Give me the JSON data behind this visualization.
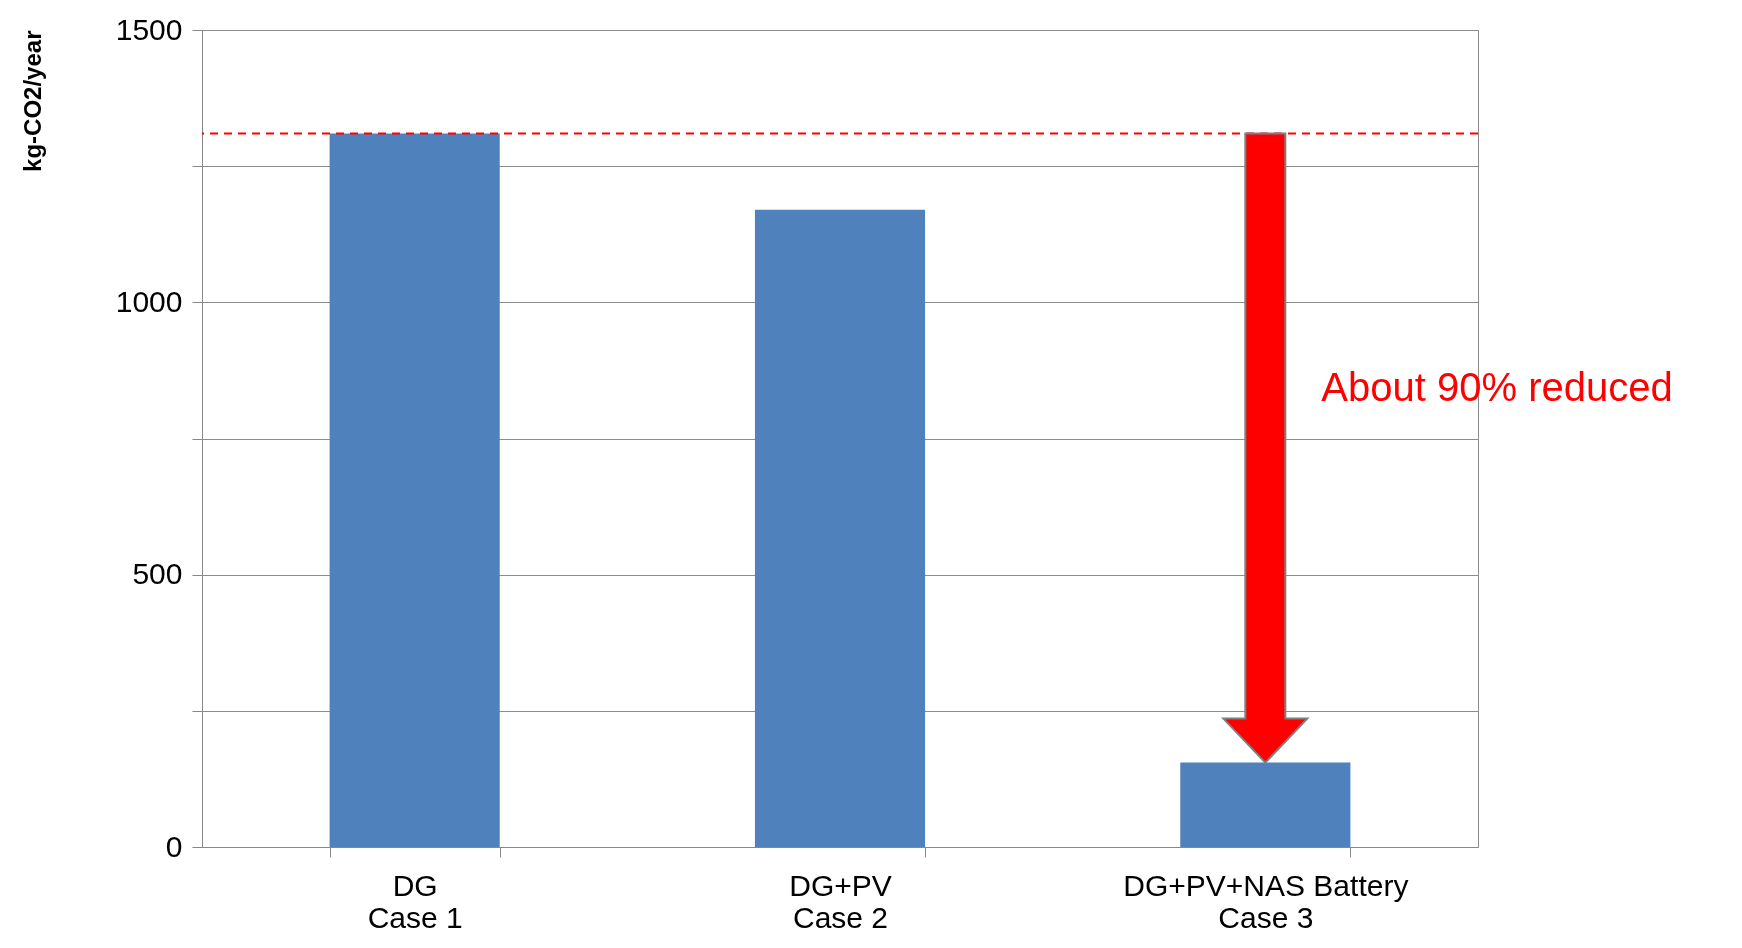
{
  "chart_data": {
    "type": "bar",
    "ylabel": "kg-CO2/year",
    "categories": [
      "DG\nCase 1",
      "DG+PV\nCase 2",
      "DG+PV+NAS Battery\nCase 3"
    ],
    "values": [
      1310,
      1170,
      155
    ],
    "color": "#4f81bd",
    "ylim": [
      0,
      1500
    ],
    "yticks": [
      0,
      {
        "value": 250,
        "label": null
      },
      500,
      {
        "value": 750,
        "label": null
      },
      1000,
      {
        "value": 1250,
        "label": null
      },
      1500
    ],
    "grid": "y",
    "ref_lines": [
      {
        "axis": "y",
        "value": 1310,
        "color": "#ff0000",
        "line_style": "dashed"
      }
    ],
    "annotations": [
      "About 90% reduced"
    ]
  }
}
